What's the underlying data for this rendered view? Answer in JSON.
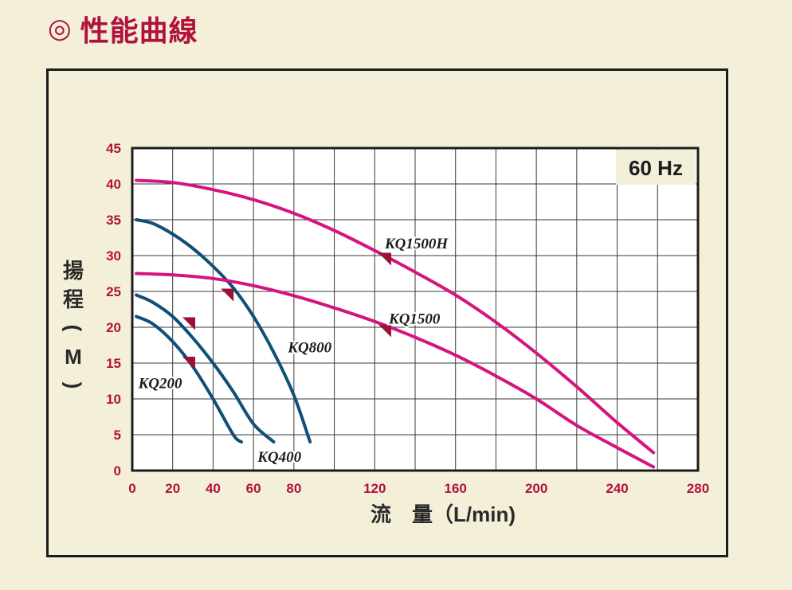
{
  "section_title": {
    "mark": "◎",
    "text": "性能曲線"
  },
  "chart_data": {
    "type": "line",
    "frequency_label": "60 Hz",
    "xlabel": "流　量（L/min)",
    "ylabel": [
      "揚",
      "程",
      "(",
      "M",
      ")"
    ],
    "xlim": [
      0,
      280
    ],
    "ylim": [
      0,
      45
    ],
    "x_ticks": [
      0,
      20,
      40,
      60,
      80,
      120,
      160,
      200,
      240,
      280
    ],
    "y_ticks": [
      0,
      5,
      10,
      15,
      20,
      25,
      30,
      35,
      40,
      45
    ],
    "grid": true,
    "series": [
      {
        "name": "KQ200",
        "color": "#0f4f78",
        "label_at": [
          3,
          11.5
        ],
        "marker_at": [
          28,
          15
        ],
        "x": [
          2,
          10,
          20,
          30,
          40,
          50,
          54
        ],
        "y": [
          21.5,
          20.5,
          18,
          14.5,
          10,
          5,
          4
        ]
      },
      {
        "name": "KQ400",
        "color": "#0f4f78",
        "label_at": [
          62,
          1.2
        ],
        "marker_at": [
          28,
          20.5
        ],
        "x": [
          2,
          10,
          20,
          30,
          40,
          50,
          60,
          70
        ],
        "y": [
          24.5,
          23.5,
          21.5,
          18.5,
          15,
          11,
          6.5,
          4
        ]
      },
      {
        "name": "KQ800",
        "color": "#0f4f78",
        "label_at": [
          77,
          16.5
        ],
        "marker_at": [
          47,
          24.5
        ],
        "x": [
          2,
          10,
          20,
          30,
          40,
          50,
          60,
          70,
          80,
          88
        ],
        "y": [
          35,
          34.5,
          33,
          31,
          28.5,
          25.5,
          21.5,
          16.5,
          10.5,
          4
        ]
      },
      {
        "name": "KQ1500",
        "color": "#d5157f",
        "label_at": [
          127,
          20.5
        ],
        "marker_at": [
          125,
          19.5
        ],
        "x": [
          2,
          20,
          40,
          60,
          80,
          100,
          120,
          140,
          160,
          180,
          200,
          220,
          240,
          258
        ],
        "y": [
          27.5,
          27.3,
          26.8,
          25.8,
          24.4,
          22.7,
          20.8,
          18.6,
          16.1,
          13.2,
          10,
          6.3,
          3.2,
          0.5
        ]
      },
      {
        "name": "KQ1500H",
        "color": "#d5157f",
        "label_at": [
          125,
          31
        ],
        "marker_at": [
          125,
          29.5
        ],
        "x": [
          2,
          20,
          40,
          60,
          80,
          100,
          120,
          140,
          160,
          180,
          200,
          220,
          240,
          258
        ],
        "y": [
          40.5,
          40.2,
          39.2,
          37.8,
          35.9,
          33.5,
          30.7,
          27.7,
          24.5,
          20.7,
          16.4,
          11.7,
          6.7,
          2.5
        ]
      }
    ]
  }
}
